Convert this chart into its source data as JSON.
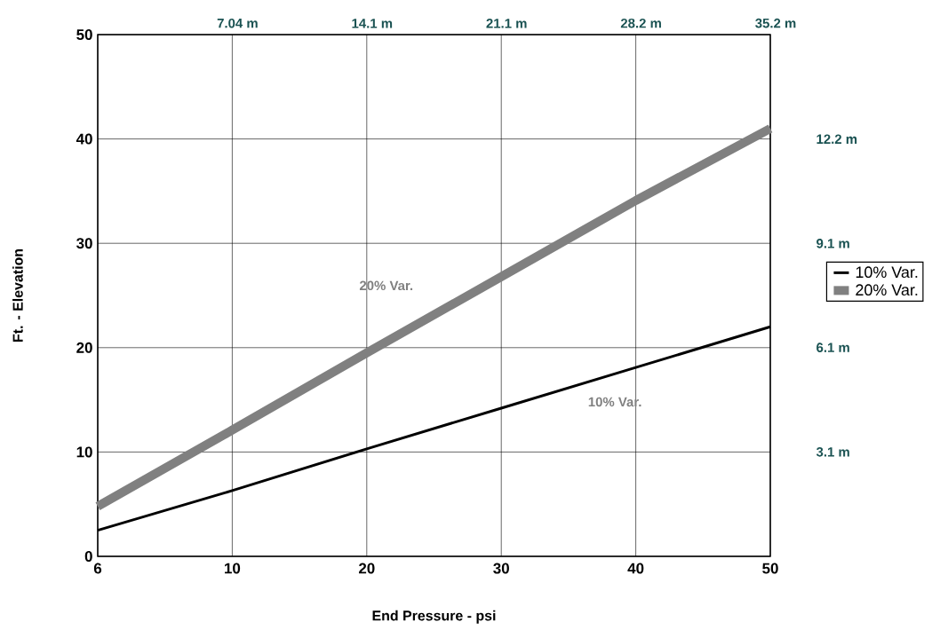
{
  "chart_data": {
    "type": "line",
    "xlabel": "End Pressure - psi",
    "ylabel": "Ft. - Elevation",
    "categories": [
      "6",
      "10",
      "20",
      "30",
      "40",
      "50"
    ],
    "series": [
      {
        "name": "10% Var.",
        "color": "#000000",
        "values": [
          2.5,
          6.3,
          10.3,
          14.2,
          18.1,
          22.0
        ]
      },
      {
        "name": "20% Var.",
        "color": "#808080",
        "values": [
          4.8,
          12.1,
          19.5,
          26.8,
          34.1,
          41.0
        ]
      }
    ],
    "ylim": [
      0,
      50
    ],
    "yticks": [
      0,
      10,
      20,
      30,
      40,
      50
    ],
    "y2lim": [
      0,
      15.24
    ],
    "y2ticks": [
      {
        "value": 3.05,
        "label": "3.1 m"
      },
      {
        "value": 6.1,
        "label": "6.1 m"
      },
      {
        "value": 9.14,
        "label": "9.1 m"
      },
      {
        "value": 12.19,
        "label": "12.2 m"
      }
    ],
    "x2lim": [
      0,
      35.2
    ],
    "x2ticks": [
      {
        "value": 7.04,
        "label": "7.04 m"
      },
      {
        "value": 14.08,
        "label": "14.1 m"
      },
      {
        "value": 21.12,
        "label": "21.1 m"
      },
      {
        "value": 28.16,
        "label": "28.2 m"
      },
      {
        "value": 35.2,
        "label": "35.2 m"
      }
    ],
    "annotations": [
      "20% Var.",
      "10% Var."
    ],
    "grid": true,
    "legend": "right"
  }
}
